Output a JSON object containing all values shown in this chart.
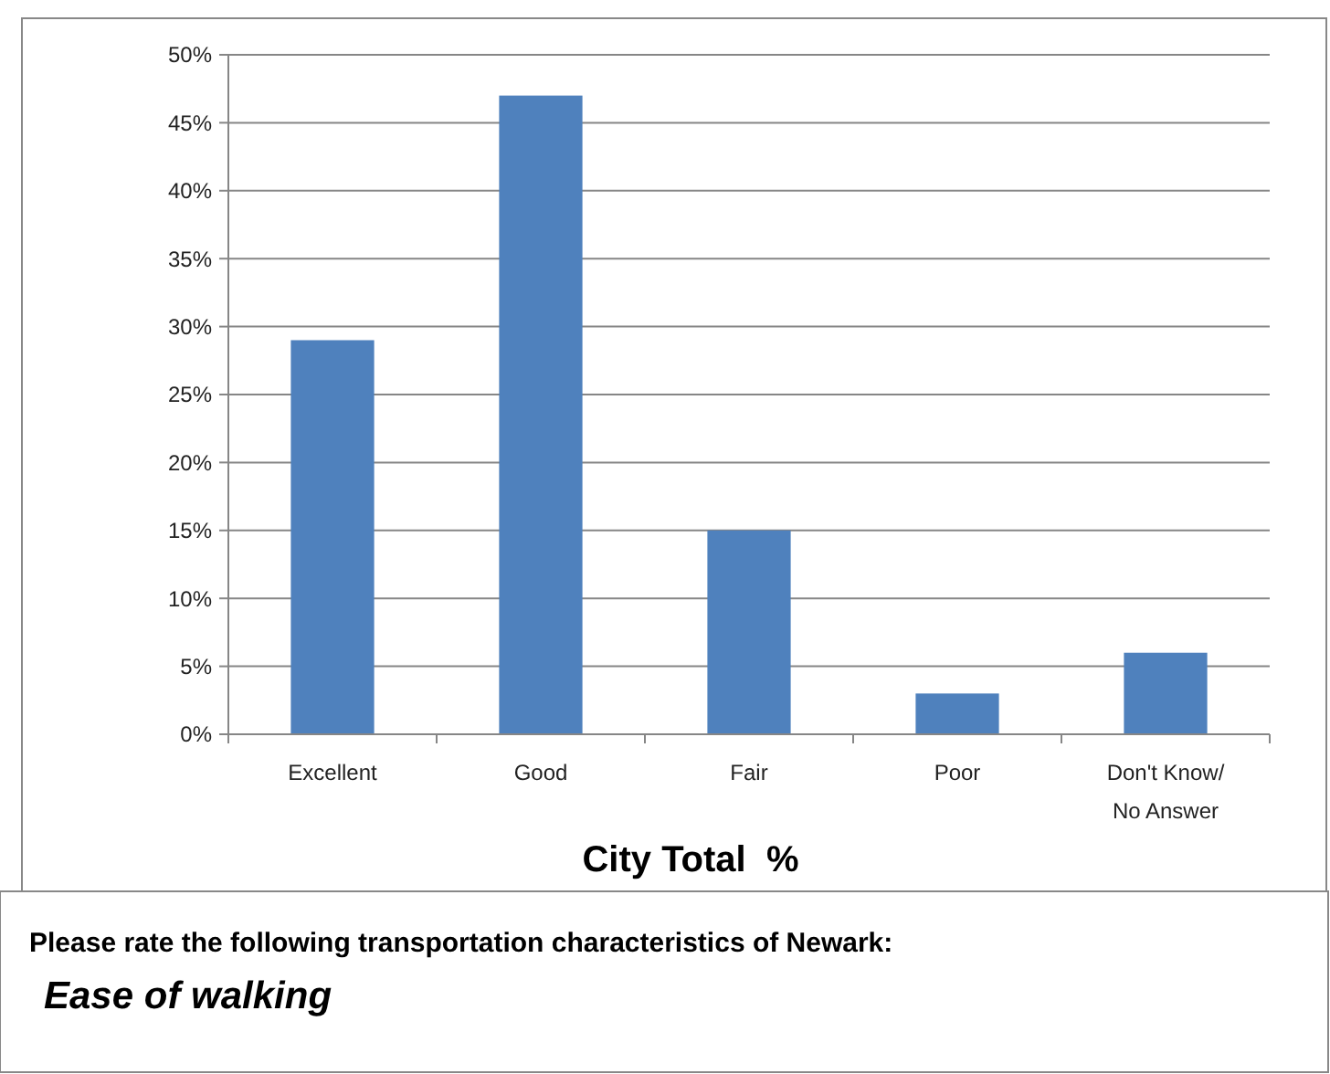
{
  "chart_data": {
    "type": "bar",
    "title": "City Total  %",
    "categories": [
      "Excellent",
      "Good",
      "Fair",
      "Poor",
      "Don't Know/ No Answer"
    ],
    "values": [
      29,
      47,
      15,
      3,
      6
    ],
    "color": "#4f81bd",
    "ylim": [
      0,
      50
    ],
    "yticks": [
      {
        "value": 0,
        "label": "0%"
      },
      {
        "value": 5,
        "label": "5%"
      },
      {
        "value": 10,
        "label": "10%"
      },
      {
        "value": 15,
        "label": "15%"
      },
      {
        "value": 20,
        "label": "20%"
      },
      {
        "value": 25,
        "label": "25%"
      },
      {
        "value": 30,
        "label": "30%"
      },
      {
        "value": 35,
        "label": "35%"
      },
      {
        "value": 40,
        "label": "40%"
      },
      {
        "value": 45,
        "label": "45%"
      },
      {
        "value": 50,
        "label": "50%"
      }
    ],
    "grid": "y",
    "annotations": [
      "Please rate the following transportation characteristics of Newark:",
      "Ease of walking"
    ]
  }
}
